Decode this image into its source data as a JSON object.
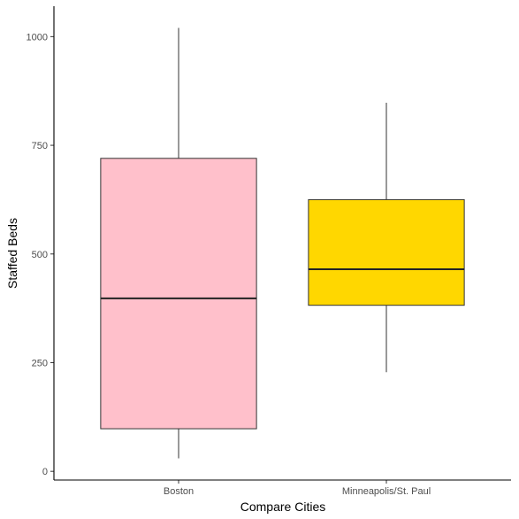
{
  "chart_data": {
    "type": "box",
    "xlabel": "Compare Cities",
    "ylabel": "Staffed Beds",
    "ylim": [
      -20,
      1070
    ],
    "yticks": [
      0,
      250,
      500,
      750,
      1000
    ],
    "grid": false,
    "legend": "none",
    "categories": [
      "Boston",
      "Minneapolis/St. Paul"
    ],
    "boxes": [
      {
        "category": "Boston",
        "min": 30,
        "q1": 98,
        "median": 398,
        "q3": 720,
        "max": 1020,
        "color": "#FFC0CB"
      },
      {
        "category": "Minneapolis/St. Paul",
        "min": 228,
        "q1": 382,
        "median": 465,
        "q3": 625,
        "max": 848,
        "color": "#FFD700"
      }
    ]
  }
}
